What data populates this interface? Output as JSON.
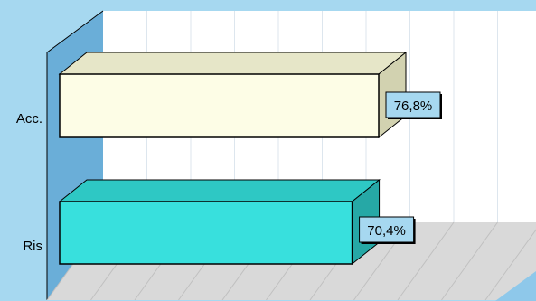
{
  "chart_data": {
    "type": "bar",
    "orientation": "horizontal",
    "style": "3d",
    "categories": [
      "Acc.",
      "Ris"
    ],
    "values": [
      76.8,
      70.4
    ],
    "data_labels": [
      "76,8%",
      "70,4%"
    ],
    "xlim": [
      0,
      100
    ],
    "grid": true,
    "legend": "none",
    "title": "",
    "xlabel": "",
    "ylabel": "",
    "colors": {
      "background": "#a6d8f0",
      "plot_wall": "#ffffff",
      "side_wall": "#6aaed8",
      "floor": "#d9d9d9",
      "gridline": "#dde6ee",
      "label_box": "#a6d8f0",
      "bars": [
        "#fdfde6",
        "#38e0dd"
      ],
      "bars_top": [
        "#e6e6c8",
        "#2ec8c4"
      ],
      "bars_side": [
        "#d2d2b0",
        "#26a8a6"
      ]
    }
  }
}
